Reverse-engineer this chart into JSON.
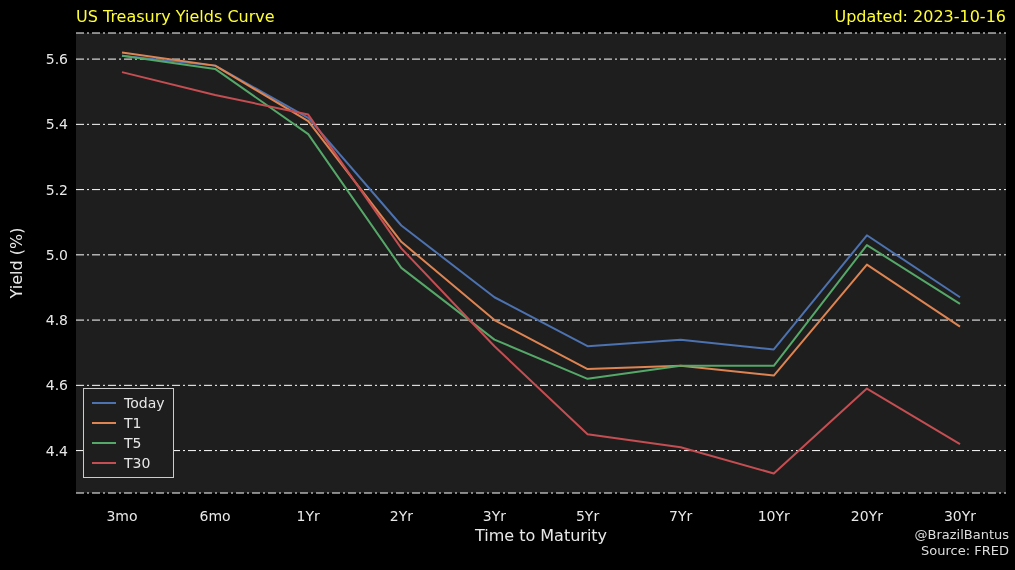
{
  "chart_data": {
    "type": "line",
    "title": "US Treasury Yields Curve",
    "xlabel": "Time to Maturity",
    "ylabel": "Yield (%)",
    "annotations": [
      "Updated: 2023-10-16",
      "@BrazilBantus\nSource: FRED"
    ],
    "categories": [
      "3mo",
      "6mo",
      "1Yr",
      "2Yr",
      "3Yr",
      "5Yr",
      "7Yr",
      "10Yr",
      "20Yr",
      "30Yr"
    ],
    "series": [
      {
        "name": "Today",
        "color": "#4c72b0",
        "values": [
          5.61,
          5.58,
          5.42,
          5.09,
          4.87,
          4.72,
          4.74,
          4.71,
          5.06,
          4.87
        ]
      },
      {
        "name": "T1",
        "color": "#dd8452",
        "values": [
          5.62,
          5.58,
          5.41,
          5.04,
          4.8,
          4.65,
          4.66,
          4.63,
          4.97,
          4.78
        ]
      },
      {
        "name": "T5",
        "color": "#55a868",
        "values": [
          5.61,
          5.57,
          5.37,
          4.96,
          4.74,
          4.62,
          4.66,
          4.66,
          5.03,
          4.85
        ]
      },
      {
        "name": "T30",
        "color": "#c44e52",
        "values": [
          5.56,
          5.49,
          5.43,
          5.02,
          4.72,
          4.45,
          4.41,
          4.33,
          4.59,
          4.42
        ]
      }
    ],
    "ylim": [
      4.27,
      5.68
    ],
    "yticks": [
      4.4,
      4.6,
      4.8,
      {
        "value": 5,
        "label": "5.0"
      },
      5.2,
      5.4,
      5.6
    ],
    "grid": "y",
    "legend": "bottom left"
  }
}
